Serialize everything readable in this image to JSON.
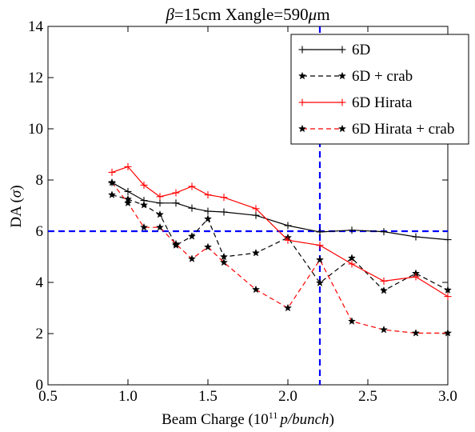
{
  "chart_data": {
    "type": "line",
    "title_beta": "β",
    "title_rest": "=15cm  Xangle=590",
    "title_mu": "μ",
    "title_unit": "m",
    "xlabel_main": "Beam Charge (10",
    "xlabel_sup": "11",
    "xlabel_italic": "p/bunch",
    "xlabel_close": ")",
    "ylabel_main": "DA (",
    "ylabel_sigma": "σ",
    "ylabel_close": ")",
    "xlim": [
      0.5,
      3.0
    ],
    "ylim": [
      0,
      14
    ],
    "xticks": [
      "0.5",
      "1.0",
      "1.5",
      "2.0",
      "2.5",
      "3.0"
    ],
    "yticks": [
      "0",
      "2",
      "4",
      "6",
      "8",
      "10",
      "12",
      "14"
    ],
    "grid": false,
    "legend_position": "top-right",
    "reference_lines": {
      "x": 2.2,
      "y": 6,
      "color": "#0000ff",
      "style": "dashed"
    },
    "series": [
      {
        "name": "6D",
        "color": "#000000",
        "dashed": false,
        "marker": "plus",
        "x": [
          0.9,
          1.0,
          1.1,
          1.2,
          1.3,
          1.4,
          1.5,
          1.6,
          1.8,
          2.0,
          2.2,
          2.4,
          2.6,
          2.8,
          3.0
        ],
        "y": [
          7.9,
          7.55,
          7.2,
          7.1,
          7.1,
          6.9,
          6.78,
          6.75,
          6.62,
          6.22,
          5.97,
          6.04,
          5.98,
          5.78,
          5.67
        ]
      },
      {
        "name": "6D + crab",
        "color": "#000000",
        "dashed": true,
        "marker": "star",
        "x": [
          0.9,
          1.0,
          1.1,
          1.2,
          1.3,
          1.4,
          1.5,
          1.6,
          1.8,
          2.0,
          2.2,
          2.4,
          2.6,
          2.8,
          3.0
        ],
        "y": [
          7.42,
          7.25,
          7.02,
          6.65,
          5.45,
          5.8,
          6.48,
          5.0,
          5.15,
          5.75,
          3.98,
          4.95,
          3.68,
          4.35,
          3.7
        ]
      },
      {
        "name": "6D Hirata",
        "color": "#ff0000",
        "dashed": false,
        "marker": "plus",
        "x": [
          0.9,
          1.0,
          1.1,
          1.2,
          1.3,
          1.4,
          1.5,
          1.6,
          1.8,
          2.0,
          2.2,
          2.4,
          2.6,
          2.8,
          3.0
        ],
        "y": [
          8.3,
          8.52,
          7.8,
          7.35,
          7.5,
          7.75,
          7.42,
          7.32,
          6.88,
          5.65,
          5.45,
          4.72,
          4.05,
          4.22,
          3.45
        ]
      },
      {
        "name": "6D Hirata + crab",
        "color": "#ff0000",
        "dashed": true,
        "marker": "star",
        "x": [
          0.9,
          1.0,
          1.1,
          1.2,
          1.3,
          1.4,
          1.5,
          1.6,
          1.8,
          2.0,
          2.2,
          2.4,
          2.6,
          2.8,
          3.0
        ],
        "y": [
          7.9,
          7.1,
          6.15,
          6.15,
          5.5,
          4.92,
          5.38,
          4.78,
          3.72,
          3.0,
          4.88,
          2.48,
          2.15,
          2.02,
          2.02
        ]
      }
    ]
  }
}
